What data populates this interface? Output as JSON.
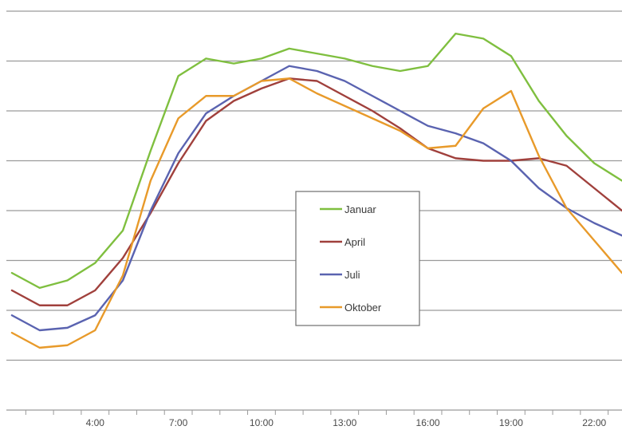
{
  "chart_data": {
    "type": "line",
    "title": "",
    "xlabel": "",
    "ylabel": "",
    "x": [
      1,
      2,
      3,
      4,
      5,
      6,
      7,
      8,
      9,
      10,
      11,
      12,
      13,
      14,
      15,
      16,
      17,
      18,
      19,
      20,
      21,
      22,
      23
    ],
    "x_tick_labels": [
      {
        "x": 4,
        "label": "4:00"
      },
      {
        "x": 7,
        "label": "7:00"
      },
      {
        "x": 10,
        "label": "10:00"
      },
      {
        "x": 13,
        "label": "13:00"
      },
      {
        "x": 16,
        "label": "16:00"
      },
      {
        "x": 19,
        "label": "19:00"
      },
      {
        "x": 22,
        "label": "22:00"
      }
    ],
    "xlim": [
      0.8,
      23.0
    ],
    "ylim": [
      0,
      8
    ],
    "y_gridlines": [
      1,
      2,
      3,
      4,
      5,
      6,
      7,
      8
    ],
    "y_tick_labels_visible": false,
    "grid": true,
    "legend_position": "center",
    "series": [
      {
        "name": "Januar",
        "color": "#7fbf3f",
        "values": [
          2.75,
          2.45,
          2.6,
          2.95,
          3.6,
          5.2,
          6.7,
          7.05,
          6.95,
          7.05,
          7.25,
          7.15,
          7.05,
          6.9,
          6.8,
          6.9,
          7.55,
          7.45,
          7.1,
          6.2,
          5.5,
          4.95,
          4.6
        ]
      },
      {
        "name": "April",
        "color": "#a0403c",
        "values": [
          2.4,
          2.1,
          2.1,
          2.4,
          3.05,
          3.95,
          4.95,
          5.8,
          6.2,
          6.45,
          6.65,
          6.6,
          6.3,
          6.0,
          5.65,
          5.25,
          5.05,
          5.0,
          5.0,
          5.05,
          4.9,
          4.45,
          4.0
        ]
      },
      {
        "name": "Juli",
        "color": "#5a63b0",
        "values": [
          1.9,
          1.6,
          1.65,
          1.9,
          2.6,
          4.0,
          5.15,
          5.95,
          6.3,
          6.6,
          6.9,
          6.8,
          6.6,
          6.3,
          6.0,
          5.7,
          5.55,
          5.35,
          5.0,
          4.45,
          4.05,
          3.75,
          3.5
        ]
      },
      {
        "name": "Oktober",
        "color": "#e89a2a",
        "values": [
          1.55,
          1.25,
          1.3,
          1.6,
          2.7,
          4.6,
          5.85,
          6.3,
          6.3,
          6.6,
          6.65,
          6.35,
          6.1,
          5.85,
          5.6,
          5.25,
          5.3,
          6.05,
          6.4,
          5.1,
          4.05,
          3.4,
          2.75
        ]
      }
    ]
  }
}
